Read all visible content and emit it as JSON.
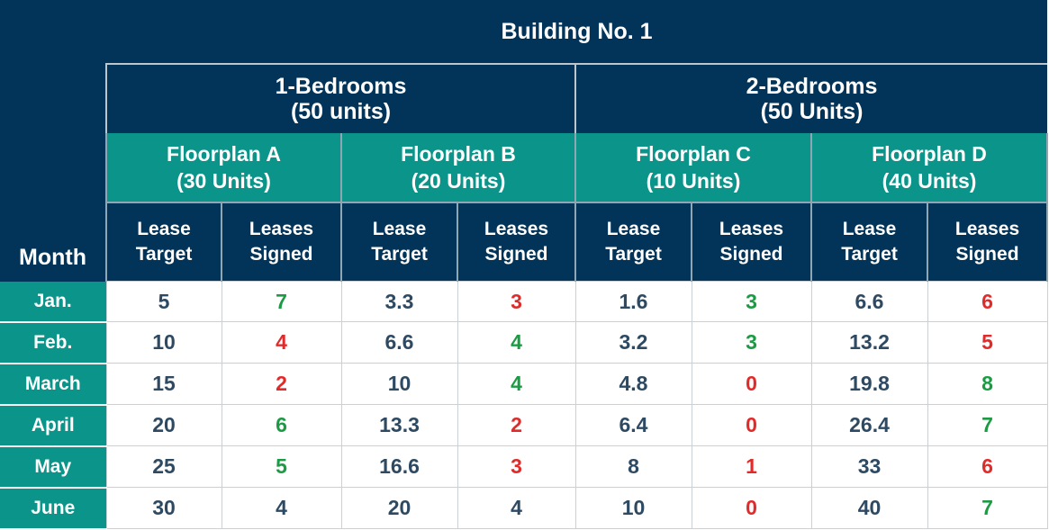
{
  "building": "Building No. 1",
  "month_header": "Month",
  "bedroom_groups": [
    {
      "label": "1-Bedrooms",
      "units": "(50 units)"
    },
    {
      "label": "2-Bedrooms",
      "units": "(50 Units)"
    }
  ],
  "floorplans": [
    {
      "label": "Floorplan A",
      "units": "(30 Units)"
    },
    {
      "label": "Floorplan B",
      "units": "(20 Units)"
    },
    {
      "label": "Floorplan C",
      "units": "(10 Units)"
    },
    {
      "label": "Floorplan D",
      "units": "(40 Units)"
    }
  ],
  "subheaders": {
    "target_1": "Lease",
    "target_2": "Target",
    "signed_1": "Leases",
    "signed_2": "Signed"
  },
  "colors": {
    "navy": "#023459",
    "teal": "#0a948a",
    "above_target": "#1c9a44",
    "below_target": "#e02b2b",
    "neutral": "#2e4a63"
  },
  "chart_data": {
    "type": "table",
    "title": "Building No. 1",
    "columns": [
      "Month",
      "Floorplan A Lease Target",
      "Floorplan A Leases Signed",
      "Floorplan B Lease Target",
      "Floorplan B Leases Signed",
      "Floorplan C Lease Target",
      "Floorplan C Leases Signed",
      "Floorplan D Lease Target",
      "Floorplan D Leases Signed"
    ],
    "rows": [
      {
        "month": "Jan.",
        "cells": [
          {
            "v": "5",
            "s": "neutral"
          },
          {
            "v": "7",
            "s": "pos"
          },
          {
            "v": "3.3",
            "s": "neutral"
          },
          {
            "v": "3",
            "s": "neg"
          },
          {
            "v": "1.6",
            "s": "neutral"
          },
          {
            "v": "3",
            "s": "pos"
          },
          {
            "v": "6.6",
            "s": "neutral"
          },
          {
            "v": "6",
            "s": "neg"
          }
        ]
      },
      {
        "month": "Feb.",
        "cells": [
          {
            "v": "10",
            "s": "neutral"
          },
          {
            "v": "4",
            "s": "neg"
          },
          {
            "v": "6.6",
            "s": "neutral"
          },
          {
            "v": "4",
            "s": "pos"
          },
          {
            "v": "3.2",
            "s": "neutral"
          },
          {
            "v": "3",
            "s": "pos"
          },
          {
            "v": "13.2",
            "s": "neutral"
          },
          {
            "v": "5",
            "s": "neg"
          }
        ]
      },
      {
        "month": "March",
        "cells": [
          {
            "v": "15",
            "s": "neutral"
          },
          {
            "v": "2",
            "s": "neg"
          },
          {
            "v": "10",
            "s": "neutral"
          },
          {
            "v": "4",
            "s": "pos"
          },
          {
            "v": "4.8",
            "s": "neutral"
          },
          {
            "v": "0",
            "s": "neg"
          },
          {
            "v": "19.8",
            "s": "neutral"
          },
          {
            "v": "8",
            "s": "pos"
          }
        ]
      },
      {
        "month": "April",
        "cells": [
          {
            "v": "20",
            "s": "neutral"
          },
          {
            "v": "6",
            "s": "pos"
          },
          {
            "v": "13.3",
            "s": "neutral"
          },
          {
            "v": "2",
            "s": "neg"
          },
          {
            "v": "6.4",
            "s": "neutral"
          },
          {
            "v": "0",
            "s": "neg"
          },
          {
            "v": "26.4",
            "s": "neutral"
          },
          {
            "v": "7",
            "s": "pos"
          }
        ]
      },
      {
        "month": "May",
        "cells": [
          {
            "v": "25",
            "s": "neutral"
          },
          {
            "v": "5",
            "s": "pos"
          },
          {
            "v": "16.6",
            "s": "neutral"
          },
          {
            "v": "3",
            "s": "neg"
          },
          {
            "v": "8",
            "s": "neutral"
          },
          {
            "v": "1",
            "s": "neg"
          },
          {
            "v": "33",
            "s": "neutral"
          },
          {
            "v": "6",
            "s": "neg"
          }
        ]
      },
      {
        "month": "June",
        "cells": [
          {
            "v": "30",
            "s": "neutral"
          },
          {
            "v": "4",
            "s": "neutral"
          },
          {
            "v": "20",
            "s": "neutral"
          },
          {
            "v": "4",
            "s": "neutral"
          },
          {
            "v": "10",
            "s": "neutral"
          },
          {
            "v": "0",
            "s": "neg"
          },
          {
            "v": "40",
            "s": "neutral"
          },
          {
            "v": "7",
            "s": "pos"
          }
        ]
      }
    ]
  }
}
